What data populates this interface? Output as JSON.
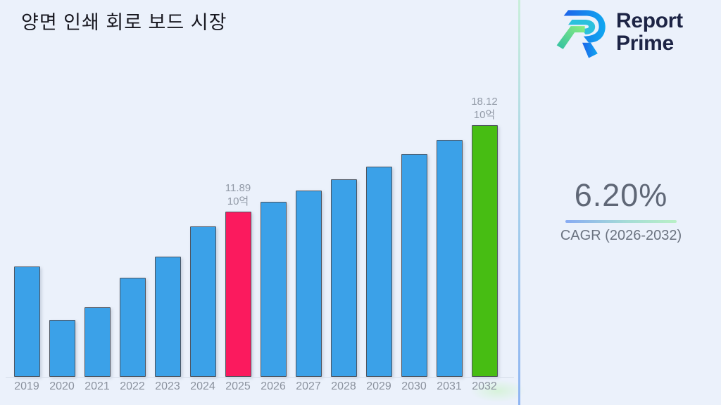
{
  "page": {
    "title": "양면 인쇄 회로 보드 시장",
    "background_color": "#ebf1fb"
  },
  "brand": {
    "name_line1": "Report",
    "name_line2": "Prime",
    "text_color": "#1d2445",
    "logo_colors": {
      "blue_dark": "#1d63ea",
      "blue_light": "#10a7f0",
      "cyan": "#2bc0dd",
      "green_light": "#8cee7e",
      "green_teal": "#2fbfa4"
    }
  },
  "cagr": {
    "value": "6.20%",
    "label": "CAGR (2026-2032)",
    "underline_gradient": [
      "#88abf3",
      "#b9f0c6"
    ]
  },
  "chart_data": {
    "type": "bar",
    "title": "양면 인쇄 회로 보드 시장",
    "unit": "10억",
    "categories": [
      "2019",
      "2020",
      "2021",
      "2022",
      "2023",
      "2024",
      "2025",
      "2026",
      "2027",
      "2028",
      "2029",
      "2030",
      "2031",
      "2032"
    ],
    "values": [
      7.95,
      4.1,
      5.01,
      7.14,
      8.66,
      10.83,
      11.89,
      12.63,
      13.41,
      14.24,
      15.13,
      16.06,
      17.06,
      18.12
    ],
    "ylim": [
      0,
      18.12
    ],
    "grid": false,
    "legend": false,
    "bar_color_default": "#3ba1e8",
    "bar_border_color": "#4e5560",
    "axis_label_color": "#8b929e",
    "highlights": [
      {
        "index": 6,
        "category": "2025",
        "color": "#fb1a5e",
        "label_line1": "11.89",
        "label_line2": "10억"
      },
      {
        "index": 13,
        "category": "2032",
        "color": "#47bd13",
        "label_line1": "18.12",
        "label_line2": "10억"
      }
    ]
  }
}
